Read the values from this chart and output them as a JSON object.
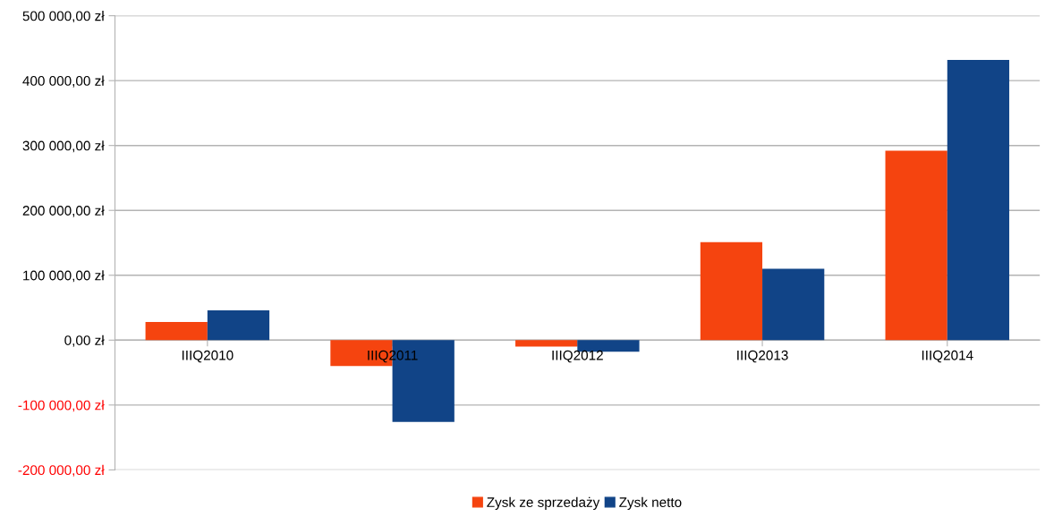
{
  "chart_data": {
    "type": "bar",
    "categories": [
      "IIIQ2010",
      "IIIQ2011",
      "IIIQ2012",
      "IIIQ2013",
      "IIIQ2014"
    ],
    "series": [
      {
        "name": "Zysk ze sprzedaży",
        "color": "#f5440f",
        "values": [
          28000,
          -40000,
          -10000,
          151000,
          292000
        ]
      },
      {
        "name": "Zysk netto",
        "color": "#114487",
        "values": [
          46000,
          -126000,
          -18000,
          110000,
          432000
        ]
      }
    ],
    "ylim": [
      -200000,
      500000
    ],
    "yticks": [
      {
        "value": -200000,
        "label": "-200 000,00 zł"
      },
      {
        "value": -100000,
        "label": "-100 000,00 zł"
      },
      {
        "value": 0,
        "label": "0,00 zł"
      },
      {
        "value": 100000,
        "label": "100 000,00 zł"
      },
      {
        "value": 200000,
        "label": "200 000,00 zł"
      },
      {
        "value": 300000,
        "label": "300 000,00 zł"
      },
      {
        "value": 400000,
        "label": "400 000,00 zł"
      },
      {
        "value": 500000,
        "label": "500 000,00 zł"
      }
    ],
    "grid": "y",
    "legend": "bottom"
  }
}
